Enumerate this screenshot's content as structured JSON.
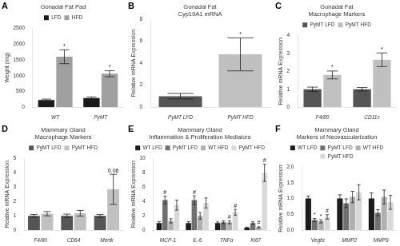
{
  "chart_data": [
    {
      "type": "bar",
      "panel_label": "A",
      "title": "Gonadal Fat Pad",
      "ylabel": "Weight (mg)",
      "categories": [
        "WT",
        "PyMT"
      ],
      "series": [
        {
          "name": "LFD",
          "color": "#1a1a1a",
          "values": [
            225,
            290
          ],
          "errors": [
            30,
            35
          ]
        },
        {
          "name": "HFD",
          "color": "#a0a0a0",
          "values": [
            1600,
            1060
          ],
          "errors": [
            220,
            95
          ]
        }
      ],
      "ylim": [
        0,
        2500
      ],
      "yticks": [
        0,
        500,
        1000,
        1500,
        2000,
        2500
      ],
      "grid": false,
      "legend": "top",
      "annotations": [
        {
          "series": "HFD",
          "category": "WT",
          "text": "*"
        },
        {
          "series": "HFD",
          "category": "PyMT",
          "text": "*"
        }
      ]
    },
    {
      "type": "bar",
      "panel_label": "B",
      "title": "Gonadal Fat\nCyp19A1 mRNA",
      "ylabel": "Relative mRNA Expression",
      "categories": [
        "PyMT LFD",
        "PyMT HFD"
      ],
      "values": [
        1.0,
        4.8
      ],
      "errors": [
        0.25,
        1.5
      ],
      "colors": [
        "#555555",
        "#c0c0c0"
      ],
      "ylim": [
        0,
        8
      ],
      "yticks": [
        0,
        2,
        4,
        6,
        8
      ],
      "grid": false,
      "annotations": [
        {
          "category": "PyMT HFD",
          "text": "*"
        }
      ]
    },
    {
      "type": "bar",
      "panel_label": "C",
      "title": "Gonadal Fat\nMacrophage Markers",
      "ylabel": "Relative mRNA Expression",
      "categories": [
        "F4/80",
        "CD11c"
      ],
      "series": [
        {
          "name": "PyMT LFD",
          "color": "#555555",
          "values": [
            1.0,
            1.0
          ],
          "errors": [
            0.12,
            0.1
          ]
        },
        {
          "name": "PyMT HFD",
          "color": "#c0c0c0",
          "values": [
            1.8,
            2.65
          ],
          "errors": [
            0.22,
            0.38
          ]
        }
      ],
      "ylim": [
        0,
        4
      ],
      "yticks": [
        0,
        1,
        2,
        3,
        4
      ],
      "grid": false,
      "legend": "top",
      "annotations": [
        {
          "series": "PyMT HFD",
          "category": "F4/80",
          "text": "*"
        },
        {
          "series": "PyMT HFD",
          "category": "CD11c",
          "text": "*"
        }
      ]
    },
    {
      "type": "bar",
      "panel_label": "D",
      "title": "Mammary Gland\nMacrophage Markers",
      "ylabel": "Relative mRNA Expression",
      "categories": [
        "F4/80",
        "CD64",
        "Mertk"
      ],
      "series": [
        {
          "name": "PyMT LFD",
          "color": "#555555",
          "values": [
            1.0,
            1.0,
            1.0
          ],
          "errors": [
            0.1,
            0.12,
            0.1
          ]
        },
        {
          "name": "PyMT HFD",
          "color": "#c0c0c0",
          "values": [
            1.15,
            1.18,
            2.85
          ],
          "errors": [
            0.15,
            0.2,
            1.05
          ]
        }
      ],
      "ylim": [
        0,
        5
      ],
      "yticks": [
        0,
        1,
        2,
        3,
        4,
        5
      ],
      "grid": false,
      "legend": "top",
      "annotations": [
        {
          "series": "PyMT HFD",
          "category": "Mertk",
          "text": "0.06"
        }
      ]
    },
    {
      "type": "bar",
      "panel_label": "E",
      "title": "Mammary Gland\nInflammation & Proliferation Mediators",
      "ylabel": "Relative mRNA Expression",
      "categories": [
        "MCP-1",
        "IL-6",
        "TNFα",
        "Ki67"
      ],
      "series": [
        {
          "name": "WT LFD",
          "color": "#1a1a1a",
          "values": [
            1.0,
            1.0,
            1.0,
            0.35
          ],
          "errors": [
            0.2,
            0.2,
            0.15,
            0.08
          ]
        },
        {
          "name": "PyMT LFD",
          "color": "#707070",
          "values": [
            4.2,
            4.2,
            1.1,
            1.0
          ],
          "errors": [
            0.55,
            0.6,
            0.2,
            0.18
          ]
        },
        {
          "name": "WT HFD",
          "color": "#b0b0b0",
          "values": [
            1.3,
            2.0,
            1.1,
            0.4
          ],
          "errors": [
            0.3,
            0.45,
            0.2,
            0.08
          ]
        },
        {
          "name": "PyMT HFD",
          "color": "#d8d8d8",
          "values": [
            3.5,
            3.8,
            2.5,
            8.0
          ],
          "errors": [
            0.7,
            0.7,
            0.4,
            1.2
          ]
        }
      ],
      "ylim": [
        0,
        10
      ],
      "yticks": [
        0,
        2,
        4,
        6,
        8,
        10
      ],
      "grid": false,
      "legend": "top",
      "annotations": [
        {
          "series": "PyMT LFD",
          "category": "MCP-1",
          "text": "#"
        },
        {
          "series": "PyMT LFD",
          "category": "IL-6",
          "text": "#"
        },
        {
          "series": "PyMT HFD",
          "category": "TNFα",
          "text": "#"
        },
        {
          "series": "PyMT HFD",
          "category": "Ki67",
          "text": "#"
        },
        {
          "series": "WT HFD",
          "category": "TNFα",
          "text": "#"
        },
        {
          "series": "WT HFD",
          "category": "Ki67",
          "text": "#"
        }
      ]
    },
    {
      "type": "bar",
      "panel_label": "F",
      "title": "Mammary Gland\nMarkers of Neovascularization",
      "ylabel": "Relative mRNA Expression",
      "categories": [
        "Vegfα",
        "MMP2",
        "MMP9"
      ],
      "series": [
        {
          "name": "WT LFD",
          "color": "#1a1a1a",
          "values": [
            1.0,
            1.0,
            1.0
          ],
          "errors": [
            0.08,
            0.12,
            0.18
          ]
        },
        {
          "name": "PyMT LFD",
          "color": "#707070",
          "values": [
            0.32,
            0.85,
            0.55
          ],
          "errors": [
            0.05,
            0.14,
            0.1
          ]
        },
        {
          "name": "WT HFD",
          "color": "#b0b0b0",
          "values": [
            0.28,
            1.05,
            1.05
          ],
          "errors": [
            0.05,
            0.18,
            0.22
          ]
        },
        {
          "name": "PyMT HFD",
          "color": "#d8d8d8",
          "values": [
            0.42,
            1.2,
            0.88
          ],
          "errors": [
            0.07,
            0.24,
            0.22
          ]
        }
      ],
      "ylim": [
        0,
        2.0
      ],
      "yticks": [
        {
          "value": 0.0,
          "label": "0.0"
        },
        {
          "value": 0.5,
          "label": "0.5"
        },
        {
          "value": 1.0,
          "label": "1.0"
        },
        {
          "value": 1.5,
          "label": "1.5"
        },
        {
          "value": 2.0,
          "label": "2.0"
        }
      ],
      "grid": false,
      "legend": "top",
      "annotations": [
        {
          "series": "PyMT LFD",
          "category": "Vegfα",
          "text": "*"
        },
        {
          "series": "WT HFD",
          "category": "Vegfα",
          "text": "*"
        },
        {
          "series": "PyMT HFD",
          "category": "Vegfα",
          "text": "#"
        }
      ]
    }
  ]
}
